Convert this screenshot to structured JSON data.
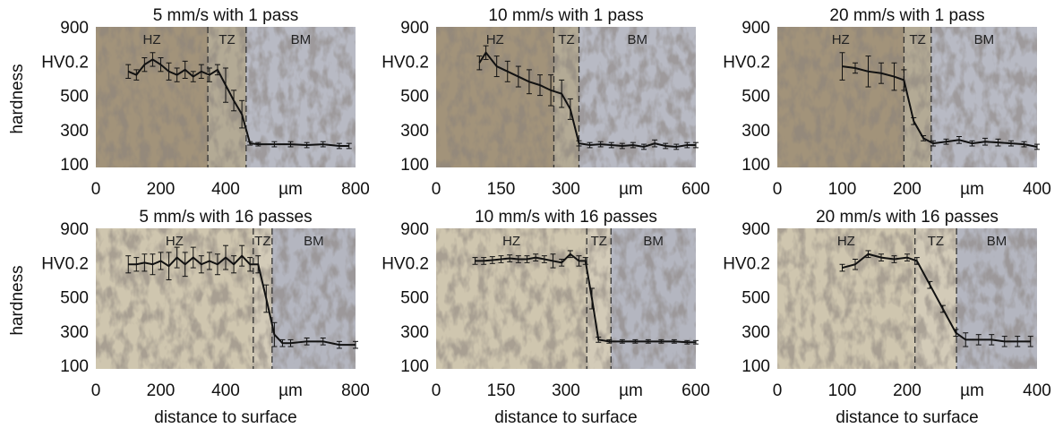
{
  "chart_data": [
    {
      "type": "line",
      "title": "5 mm/s with 1 pass",
      "ylabel": "hardness",
      "color": "#111111",
      "x": [
        100,
        125,
        150,
        175,
        200,
        225,
        250,
        275,
        300,
        325,
        350,
        375,
        400,
        425,
        450,
        475,
        500,
        550,
        600,
        650,
        700,
        750,
        780
      ],
      "values": [
        650,
        630,
        690,
        720,
        690,
        650,
        630,
        660,
        620,
        650,
        630,
        660,
        570,
        480,
        400,
        230,
        225,
        225,
        225,
        220,
        225,
        215,
        215
      ],
      "errors": [
        40,
        30,
        40,
        40,
        40,
        50,
        40,
        50,
        30,
        40,
        40,
        30,
        100,
        60,
        80,
        10,
        10,
        15,
        15,
        15,
        15,
        15,
        15
      ],
      "xlim": [
        0,
        800
      ],
      "ylim": [
        100,
        900
      ],
      "xticks": [
        0,
        200,
        400,
        {
          "value": 600,
          "label": "µm"
        },
        800
      ],
      "yticks": [
        100,
        300,
        500,
        {
          "value": 700,
          "label": "HV0.2"
        },
        900
      ],
      "zones": [
        "HZ",
        "TZ",
        "BM"
      ],
      "boundaries": [
        345,
        463
      ]
    },
    {
      "type": "line",
      "title": "10 mm/s with 1 pass",
      "color": "#111111",
      "x": [
        100,
        115,
        140,
        165,
        190,
        215,
        240,
        265,
        290,
        310,
        330,
        355,
        380,
        405,
        430,
        455,
        480,
        505,
        530,
        555,
        580,
        600
      ],
      "values": [
        700,
        760,
        680,
        650,
        620,
        590,
        570,
        540,
        520,
        430,
        230,
        220,
        225,
        220,
        215,
        220,
        210,
        230,
        215,
        210,
        220,
        220
      ],
      "errors": [
        40,
        40,
        60,
        60,
        60,
        70,
        60,
        90,
        80,
        60,
        15,
        15,
        15,
        15,
        15,
        15,
        15,
        20,
        15,
        15,
        15,
        15
      ],
      "xlim": [
        0,
        600
      ],
      "ylim": [
        100,
        900
      ],
      "xticks": [
        0,
        150,
        300,
        {
          "value": 450,
          "label": "µm"
        },
        600
      ],
      "yticks": [
        100,
        300,
        500,
        {
          "value": 700,
          "label": "HV0.2"
        },
        900
      ],
      "zones": [
        "HZ",
        "TZ",
        "BM"
      ],
      "boundaries": [
        272,
        330
      ]
    },
    {
      "type": "line",
      "title": "20 mm/s with 1 pass",
      "color": "#111111",
      "x": [
        100,
        120,
        140,
        160,
        180,
        195,
        210,
        225,
        240,
        260,
        280,
        300,
        320,
        340,
        360,
        380,
        400
      ],
      "values": [
        680,
        670,
        650,
        640,
        620,
        600,
        360,
        260,
        230,
        240,
        250,
        230,
        240,
        235,
        230,
        225,
        210
      ],
      "errors": [
        80,
        30,
        90,
        60,
        80,
        60,
        20,
        15,
        15,
        15,
        20,
        15,
        20,
        20,
        15,
        15,
        15
      ],
      "xlim": [
        0,
        400
      ],
      "ylim": [
        100,
        900
      ],
      "xticks": [
        0,
        100,
        200,
        {
          "value": 300,
          "label": "µm"
        },
        400
      ],
      "yticks": [
        100,
        300,
        500,
        {
          "value": 700,
          "label": "HV0.2"
        },
        900
      ],
      "zones": [
        "HZ",
        "TZ",
        "BM"
      ],
      "boundaries": [
        195,
        237
      ]
    },
    {
      "type": "line",
      "title": "5 mm/s with 16 passes",
      "ylabel": "hardness",
      "xlabel": "distance to surface",
      "color": "#111111",
      "x": [
        100,
        125,
        150,
        175,
        200,
        225,
        250,
        275,
        300,
        325,
        350,
        375,
        400,
        425,
        450,
        475,
        500,
        525,
        550,
        575,
        600,
        650,
        700,
        750,
        800
      ],
      "values": [
        700,
        700,
        710,
        700,
        720,
        690,
        740,
        700,
        740,
        700,
        720,
        700,
        740,
        700,
        750,
        700,
        700,
        500,
        290,
        240,
        240,
        250,
        250,
        230,
        230
      ],
      "errors": [
        50,
        40,
        50,
        60,
        50,
        80,
        60,
        70,
        60,
        50,
        50,
        60,
        70,
        50,
        60,
        40,
        50,
        80,
        70,
        20,
        20,
        20,
        20,
        20,
        20
      ],
      "xlim": [
        0,
        800
      ],
      "ylim": [
        100,
        900
      ],
      "xticks": [
        0,
        200,
        400,
        {
          "value": 600,
          "label": "µm"
        },
        800
      ],
      "yticks": [
        100,
        300,
        500,
        {
          "value": 700,
          "label": "HV0.2"
        },
        900
      ],
      "zones": [
        "HZ",
        "TZ",
        "BM"
      ],
      "boundaries": [
        485,
        543
      ]
    },
    {
      "type": "line",
      "title": "10 mm/s with 16 passes",
      "xlabel": "distance to surface",
      "color": "#111111",
      "x": [
        90,
        110,
        130,
        150,
        170,
        190,
        210,
        230,
        250,
        270,
        290,
        310,
        330,
        345,
        360,
        375,
        400,
        430,
        460,
        490,
        520,
        550,
        580,
        600
      ],
      "values": [
        720,
        720,
        725,
        730,
        735,
        730,
        730,
        740,
        730,
        720,
        710,
        760,
        720,
        720,
        500,
        260,
        250,
        250,
        250,
        250,
        250,
        250,
        245,
        245
      ],
      "errors": [
        20,
        20,
        20,
        20,
        20,
        20,
        20,
        20,
        20,
        40,
        20,
        20,
        30,
        20,
        60,
        15,
        10,
        10,
        10,
        10,
        10,
        10,
        10,
        10
      ],
      "xlim": [
        0,
        600
      ],
      "ylim": [
        100,
        900
      ],
      "xticks": [
        0,
        150,
        300,
        {
          "value": 450,
          "label": "µm"
        },
        600
      ],
      "yticks": [
        100,
        300,
        500,
        {
          "value": 700,
          "label": "HV0.2"
        },
        900
      ],
      "zones": [
        "HZ",
        "TZ",
        "BM"
      ],
      "boundaries": [
        348,
        404
      ]
    },
    {
      "type": "line",
      "title": "20 mm/s with 16 passes",
      "xlabel": "distance to surface",
      "color": "#111111",
      "x": [
        100,
        120,
        140,
        160,
        180,
        200,
        215,
        235,
        255,
        275,
        290,
        310,
        330,
        350,
        370,
        390
      ],
      "values": [
        680,
        700,
        760,
        740,
        730,
        740,
        720,
        580,
        440,
        300,
        260,
        260,
        260,
        250,
        250,
        250
      ],
      "errors": [
        20,
        30,
        20,
        20,
        20,
        20,
        20,
        20,
        20,
        20,
        40,
        30,
        30,
        30,
        30,
        30
      ],
      "xlim": [
        0,
        400
      ],
      "ylim": [
        100,
        900
      ],
      "xticks": [
        0,
        100,
        200,
        {
          "value": 300,
          "label": "µm"
        },
        400
      ],
      "yticks": [
        100,
        300,
        500,
        {
          "value": 700,
          "label": "HV0.2"
        },
        900
      ],
      "zones": [
        "HZ",
        "TZ",
        "BM"
      ],
      "boundaries": [
        212,
        276
      ]
    }
  ]
}
